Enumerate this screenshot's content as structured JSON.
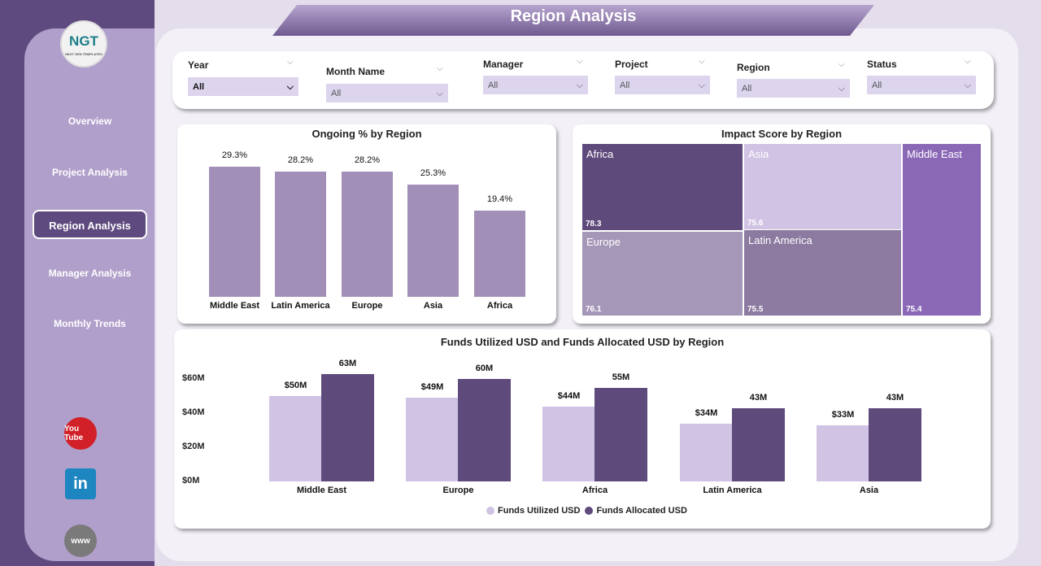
{
  "title": "Region Analysis",
  "logo": {
    "text": "NGT",
    "subtext": "NEXT GEN TEMPLATES"
  },
  "nav": [
    {
      "label": "Overview"
    },
    {
      "label": "Project Analysis"
    },
    {
      "label": "Region Analysis",
      "active": true
    },
    {
      "label": "Manager Analysis"
    },
    {
      "label": "Monthly Trends"
    }
  ],
  "social": [
    {
      "icon": "youtube-icon",
      "label": "You Tube"
    },
    {
      "icon": "linkedin-icon",
      "label": "in"
    },
    {
      "icon": "globe-icon",
      "label": "www"
    }
  ],
  "filters": [
    {
      "label": "Year",
      "value": "All"
    },
    {
      "label": "Month Name",
      "value": "All"
    },
    {
      "label": "Manager",
      "value": "All"
    },
    {
      "label": "Project",
      "value": "All"
    },
    {
      "label": "Region",
      "value": "All"
    },
    {
      "label": "Status",
      "value": "All"
    }
  ],
  "colors": {
    "sidebar": "#5e4a7e",
    "bar": "#a28fb8",
    "utilized": "#d0c3e3",
    "allocated": "#5f4a7c"
  },
  "chart_data": [
    {
      "type": "bar",
      "title": "Ongoing % by Region",
      "categories": [
        "Middle East",
        "Latin America",
        "Europe",
        "Asia",
        "Africa"
      ],
      "values": [
        29.3,
        28.2,
        28.2,
        25.3,
        19.4
      ],
      "labels": [
        "29.3%",
        "28.2%",
        "28.2%",
        "25.3%",
        "19.4%"
      ]
    },
    {
      "type": "treemap",
      "title": "Impact Score by Region",
      "categories": [
        "Africa",
        "Asia",
        "Middle East",
        "Europe",
        "Latin America"
      ],
      "values": [
        78.3,
        75.6,
        75.4,
        76.1,
        75.5
      ],
      "colors": [
        "#5f4a7c",
        "#d0c3e3",
        "#8a68b6",
        "#a597b8",
        "#8c7aa0"
      ]
    },
    {
      "type": "bar",
      "title": "Funds Utilized USD and Funds Allocated USD by Region",
      "categories": [
        "Middle East",
        "Europe",
        "Africa",
        "Latin America",
        "Asia"
      ],
      "series": [
        {
          "name": "Funds Utilized USD",
          "values": [
            50,
            49,
            44,
            34,
            33
          ],
          "labels": [
            "$50M",
            "$49M",
            "$44M",
            "$34M",
            "$33M"
          ]
        },
        {
          "name": "Funds Allocated USD",
          "values": [
            63,
            60,
            55,
            43,
            43
          ],
          "labels": [
            "63M",
            "60M",
            "55M",
            "43M",
            "43M"
          ]
        }
      ],
      "yticks": [
        "$0M",
        "$20M",
        "$40M",
        "$60M"
      ],
      "ylim": [
        0,
        60
      ],
      "legend": "bottom"
    }
  ]
}
